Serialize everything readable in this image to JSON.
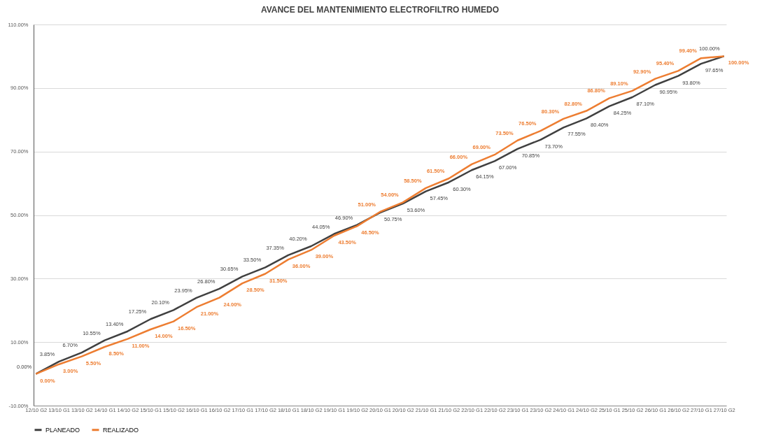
{
  "chart_data": {
    "type": "line",
    "title": "AVANCE DEL MANTENIMIENTO ELECTROFILTRO HUMEDO",
    "categories": [
      "12/10 G2",
      "13/10 G1",
      "13/10 G2",
      "14/10 G1",
      "14/10 G2",
      "15/10 G1",
      "15/10 G2",
      "16/10 G1",
      "16/10 G2",
      "17/10 G1",
      "17/10 G2",
      "18/10 G1",
      "18/10 G2",
      "19/10 G1",
      "19/10 G2",
      "20/10 G1",
      "20/10 G2",
      "21/10 G1",
      "21/10 G2",
      "22/10 G1",
      "22/10 G2",
      "23/10 G1",
      "23/10 G2",
      "24/10 G1",
      "24/10 G2",
      "25/10 G1",
      "25/10 G2",
      "26/10 G1",
      "26/10 G2",
      "27/10 G1",
      "27/10 G2"
    ],
    "series": [
      {
        "name": "PLANEADO",
        "color": "#404040",
        "values": [
          0,
          3.85,
          6.7,
          10.55,
          13.4,
          17.25,
          20.1,
          23.95,
          26.8,
          30.65,
          33.5,
          37.35,
          40.2,
          44.05,
          46.9,
          50.75,
          53.6,
          57.45,
          60.3,
          64.15,
          67,
          70.85,
          73.7,
          77.55,
          80.4,
          84.25,
          87.1,
          90.95,
          93.8,
          97.65,
          100
        ],
        "value_labels": [
          "0.00%",
          "3.85%",
          "6.70%",
          "10.55%",
          "13.40%",
          "17.25%",
          "20.10%",
          "23.95%",
          "26.80%",
          "30.65%",
          "33.50%",
          "37.35%",
          "40.20%",
          "44.05%",
          "46.90%",
          "50.75%",
          "53.60%",
          "57.45%",
          "60.30%",
          "64.15%",
          "67.00%",
          "70.85%",
          "73.70%",
          "77.55%",
          "80.40%",
          "84.25%",
          "87.10%",
          "90.95%",
          "93.80%",
          "97.65%",
          "100.00%"
        ]
      },
      {
        "name": "REALIZADO",
        "color": "#ed7d31",
        "values": [
          0,
          3,
          5.5,
          8.5,
          11,
          14,
          16.5,
          21,
          24,
          28.5,
          31.5,
          36,
          39,
          43.5,
          46.5,
          51,
          54,
          58.5,
          61.5,
          66,
          69,
          73.5,
          76.5,
          80.3,
          82.8,
          86.8,
          89.1,
          92.9,
          95.4,
          99.4,
          100
        ],
        "value_labels": [
          "0.00%",
          "3.00%",
          "5.50%",
          "8.50%",
          "11.00%",
          "14.00%",
          "16.50%",
          "21.00%",
          "24.00%",
          "28.50%",
          "31.50%",
          "36.00%",
          "39.00%",
          "43.50%",
          "46.50%",
          "51.00%",
          "54.00%",
          "58.50%",
          "61.50%",
          "66.00%",
          "69.00%",
          "73.50%",
          "76.50%",
          "80.30%",
          "82.80%",
          "86.80%",
          "89.10%",
          "92.90%",
          "95.40%",
          "99.40%",
          "100.00%"
        ]
      }
    ],
    "ylim": [
      -10,
      110
    ],
    "yticks": [
      {
        "value": -10,
        "label": "-10.00%"
      },
      {
        "value": 10,
        "label": "10.00%"
      },
      {
        "value": 30,
        "label": "30.00%"
      },
      {
        "value": 50,
        "label": "50.00%"
      },
      {
        "value": 70,
        "label": "70.00%"
      },
      {
        "value": 90,
        "label": "90.00%"
      },
      {
        "value": 110,
        "label": "110.00%"
      }
    ],
    "grid": "y",
    "legend": "bottom",
    "line_style": "solid"
  }
}
